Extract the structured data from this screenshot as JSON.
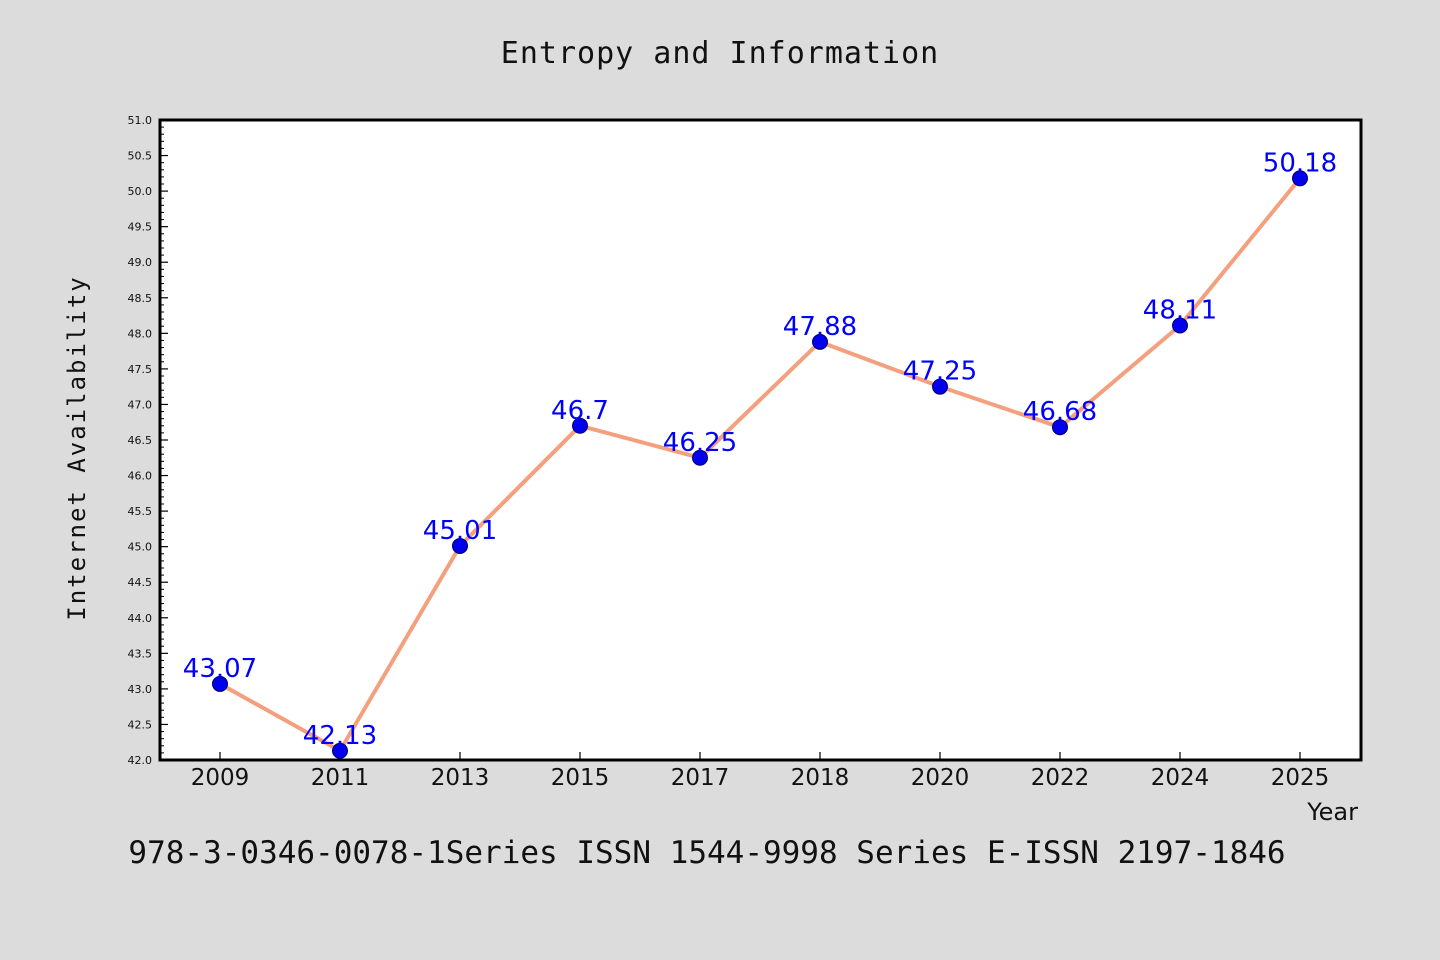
{
  "colors": {
    "background": "#dcdcdc",
    "plot_background": "#ffffff",
    "line": "#f4a07e",
    "marker": "#0000ee",
    "data_label": "#0000ff",
    "axis": "#000000"
  },
  "footnote": "978-3-0346-0078-1Series ISSN 1544-9998 Series E-ISSN 2197-1846",
  "chart_data": {
    "type": "line",
    "title": "Entropy and Information",
    "xlabel": "Year",
    "ylabel": "Internet Availability",
    "categories": [
      "2009",
      "2011",
      "2013",
      "2015",
      "2017",
      "2018",
      "2020",
      "2022",
      "2024",
      "2025"
    ],
    "values": [
      43.07,
      42.13,
      45.01,
      46.7,
      46.25,
      47.88,
      47.25,
      46.68,
      48.11,
      50.18
    ],
    "data_labels": [
      "43.07",
      "42.13",
      "45.01",
      "46.7",
      "46.25",
      "47.88",
      "47.25",
      "46.68",
      "48.11",
      "50.18"
    ],
    "ylim": [
      42.0,
      51.0
    ],
    "yticks": [
      "42.0",
      "42.5",
      "43.0",
      "43.5",
      "44.0",
      "44.5",
      "45.0",
      "45.5",
      "46.0",
      "46.5",
      "47.0",
      "47.5",
      "48.0",
      "48.5",
      "49.0",
      "49.5",
      "50.0",
      "50.5",
      "51.0"
    ],
    "grid": false,
    "legend": "none"
  }
}
